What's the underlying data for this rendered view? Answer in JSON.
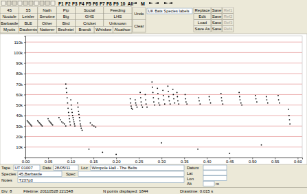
{
  "toolbar": {
    "function_keys": [
      "F1",
      "F2",
      "F3",
      "F4",
      "F5",
      "F6",
      "F7",
      "F8",
      "F9",
      "10",
      "All"
    ],
    "mode": "M"
  },
  "species_buttons": [
    [
      "45",
      "55",
      "Nath",
      "Pip",
      "Social",
      "Feeding"
    ],
    [
      "Noctule",
      "Leisler",
      "Serotine",
      "Big",
      "GHS",
      "LHS"
    ],
    [
      "Barbastle",
      "BLE",
      "Other",
      "Bird",
      "Cricket",
      "Unknown"
    ],
    [
      "Myotis",
      "Daubents",
      "Natterer",
      "Bechstei",
      "Brandt",
      "Whiskee",
      "Alcathoe"
    ]
  ],
  "undo": "Undo",
  "clear": "Clear",
  "label_set": "UK Bats Species labels",
  "label_actions": [
    [
      "Replace",
      "Save",
      "Ref1"
    ],
    [
      "Edit",
      "Save",
      "Ref2"
    ],
    [
      "Load",
      "Save",
      "Ref3"
    ],
    [
      "Save As",
      "Save",
      "Ref4"
    ]
  ],
  "chart_data": {
    "type": "scatter",
    "color": "#000000",
    "grid": true,
    "xlim": [
      0,
      0.61
    ],
    "ylim": [
      0,
      116000
    ],
    "xticks": [
      {
        "value": 0,
        "label": "0.00"
      },
      {
        "value": 0.05,
        "label": "0.05"
      },
      {
        "value": 0.1,
        "label": "0.10"
      },
      {
        "value": 0.15,
        "label": "0.15"
      },
      {
        "value": 0.2,
        "label": "0.20"
      },
      {
        "value": 0.25,
        "label": "0.25"
      },
      {
        "value": 0.3,
        "label": "0.30"
      },
      {
        "value": 0.35,
        "label": "0.35"
      },
      {
        "value": 0.4,
        "label": "0.40"
      },
      {
        "value": 0.45,
        "label": "0.45"
      },
      {
        "value": 0.5,
        "label": "0.50"
      },
      {
        "value": 0.55,
        "label": "0.55"
      },
      {
        "value": 0.6,
        "label": "0.60"
      }
    ],
    "yticks": [
      {
        "value": 10000,
        "label": "10k"
      },
      {
        "value": 20000,
        "label": "20k"
      },
      {
        "value": 30000,
        "label": "30k"
      },
      {
        "value": 40000,
        "label": "40k"
      },
      {
        "value": 50000,
        "label": "50k"
      },
      {
        "value": 60000,
        "label": "60k"
      },
      {
        "value": 70000,
        "label": "70k"
      },
      {
        "value": 80000,
        "label": "80k"
      },
      {
        "value": 90000,
        "label": "90k"
      },
      {
        "value": 100000,
        "label": "100k"
      },
      {
        "value": 110000,
        "label": "110k"
      }
    ],
    "x": [
      0.004,
      0.006,
      0.008,
      0.01,
      0.012,
      0.014,
      0.027,
      0.029,
      0.031,
      0.033,
      0.035,
      0.037,
      0.05,
      0.052,
      0.054,
      0.056,
      0.058,
      0.06,
      0.074,
      0.077,
      0.08,
      0.083,
      0.086,
      0.089,
      0.089,
      0.09,
      0.091,
      0.092,
      0.093,
      0.094,
      0.095,
      0.096,
      0.097,
      0.098,
      0.099,
      0.1,
      0.101,
      0.102,
      0.103,
      0.104,
      0.105,
      0.106,
      0.107,
      0.108,
      0.109,
      0.115,
      0.116,
      0.117,
      0.118,
      0.119,
      0.12,
      0.121,
      0.122,
      0.123,
      0.125,
      0.143,
      0.147,
      0.151,
      0.155,
      0.14,
      0.17,
      0.231,
      0.232,
      0.233,
      0.234,
      0.236,
      0.242,
      0.243,
      0.244,
      0.246,
      0.253,
      0.254,
      0.255,
      0.256,
      0.258,
      0.264,
      0.265,
      0.266,
      0.268,
      0.279,
      0.28,
      0.281,
      0.282,
      0.283,
      0.285,
      0.291,
      0.292,
      0.293,
      0.294,
      0.296,
      0.303,
      0.304,
      0.305,
      0.307,
      0.314,
      0.315,
      0.316,
      0.317,
      0.319,
      0.325,
      0.326,
      0.327,
      0.329,
      0.334,
      0.335,
      0.336,
      0.338,
      0.352,
      0.353,
      0.354,
      0.356,
      0.382,
      0.383,
      0.385,
      0.405,
      0.406,
      0.408,
      0.431,
      0.432,
      0.433,
      0.435,
      0.471,
      0.472,
      0.473,
      0.475,
      0.477,
      0.507,
      0.508,
      0.51,
      0.531,
      0.532,
      0.534,
      0.557,
      0.558,
      0.56,
      0.58,
      0.581,
      0.582,
      0.583,
      0.2,
      0.3,
      0.38,
      0.45,
      0.52
    ],
    "values": [
      35000,
      34000,
      33000,
      32000,
      31000,
      30000,
      35000,
      34000,
      33000,
      32000,
      31000,
      30000,
      37000,
      35000,
      34000,
      33000,
      32000,
      31000,
      38000,
      36000,
      34000,
      33000,
      32000,
      30000,
      70000,
      66000,
      62000,
      57000,
      52000,
      47000,
      43000,
      40000,
      37000,
      34000,
      31000,
      55000,
      50000,
      46000,
      43000,
      40000,
      38000,
      36000,
      34000,
      32000,
      30000,
      52000,
      48000,
      44000,
      41000,
      38000,
      35000,
      32000,
      30000,
      28000,
      26000,
      33000,
      31000,
      30000,
      29000,
      8000,
      5000,
      56000,
      52000,
      49000,
      47000,
      46000,
      55000,
      52000,
      50000,
      48000,
      62000,
      57000,
      53000,
      50000,
      48000,
      60000,
      55000,
      51000,
      48000,
      72000,
      67000,
      62000,
      57000,
      53000,
      50000,
      66000,
      61000,
      56000,
      52000,
      50000,
      64000,
      59000,
      55000,
      51000,
      68000,
      63000,
      58000,
      54000,
      51000,
      65000,
      60000,
      56000,
      52000,
      62000,
      58000,
      54000,
      51000,
      60000,
      56000,
      53000,
      51000,
      57000,
      54000,
      51000,
      58000,
      55000,
      52000,
      61000,
      57000,
      54000,
      51000,
      62000,
      58000,
      55000,
      52000,
      50000,
      59000,
      56000,
      53000,
      58000,
      55000,
      52000,
      59000,
      55000,
      52000,
      46000,
      40000,
      36000,
      32000,
      3000,
      14000,
      8000,
      4000,
      12000
    ]
  },
  "info": {
    "rows": [
      [
        {
          "label": "Tape",
          "value": "UT 01007"
        },
        {
          "label": "Date",
          "value": "28/05/11"
        },
        {
          "label": "Loc",
          "value": "Wimpole Hall - The Belts"
        }
      ],
      [
        {
          "label": "Species",
          "value": "45,Barbastle"
        },
        {
          "label": "Spec"
        }
      ],
      [
        {
          "label": "Notes",
          "value": "T237p3"
        }
      ]
    ],
    "position_fields": [
      "Datum",
      "Lat",
      "Lon",
      "Alt"
    ],
    "alt_unit": "m"
  },
  "status": [
    "Div: 8",
    "Filetime: 20110528 221548",
    "N points displayed: 1844",
    "Drawtime: 0.015 s"
  ]
}
